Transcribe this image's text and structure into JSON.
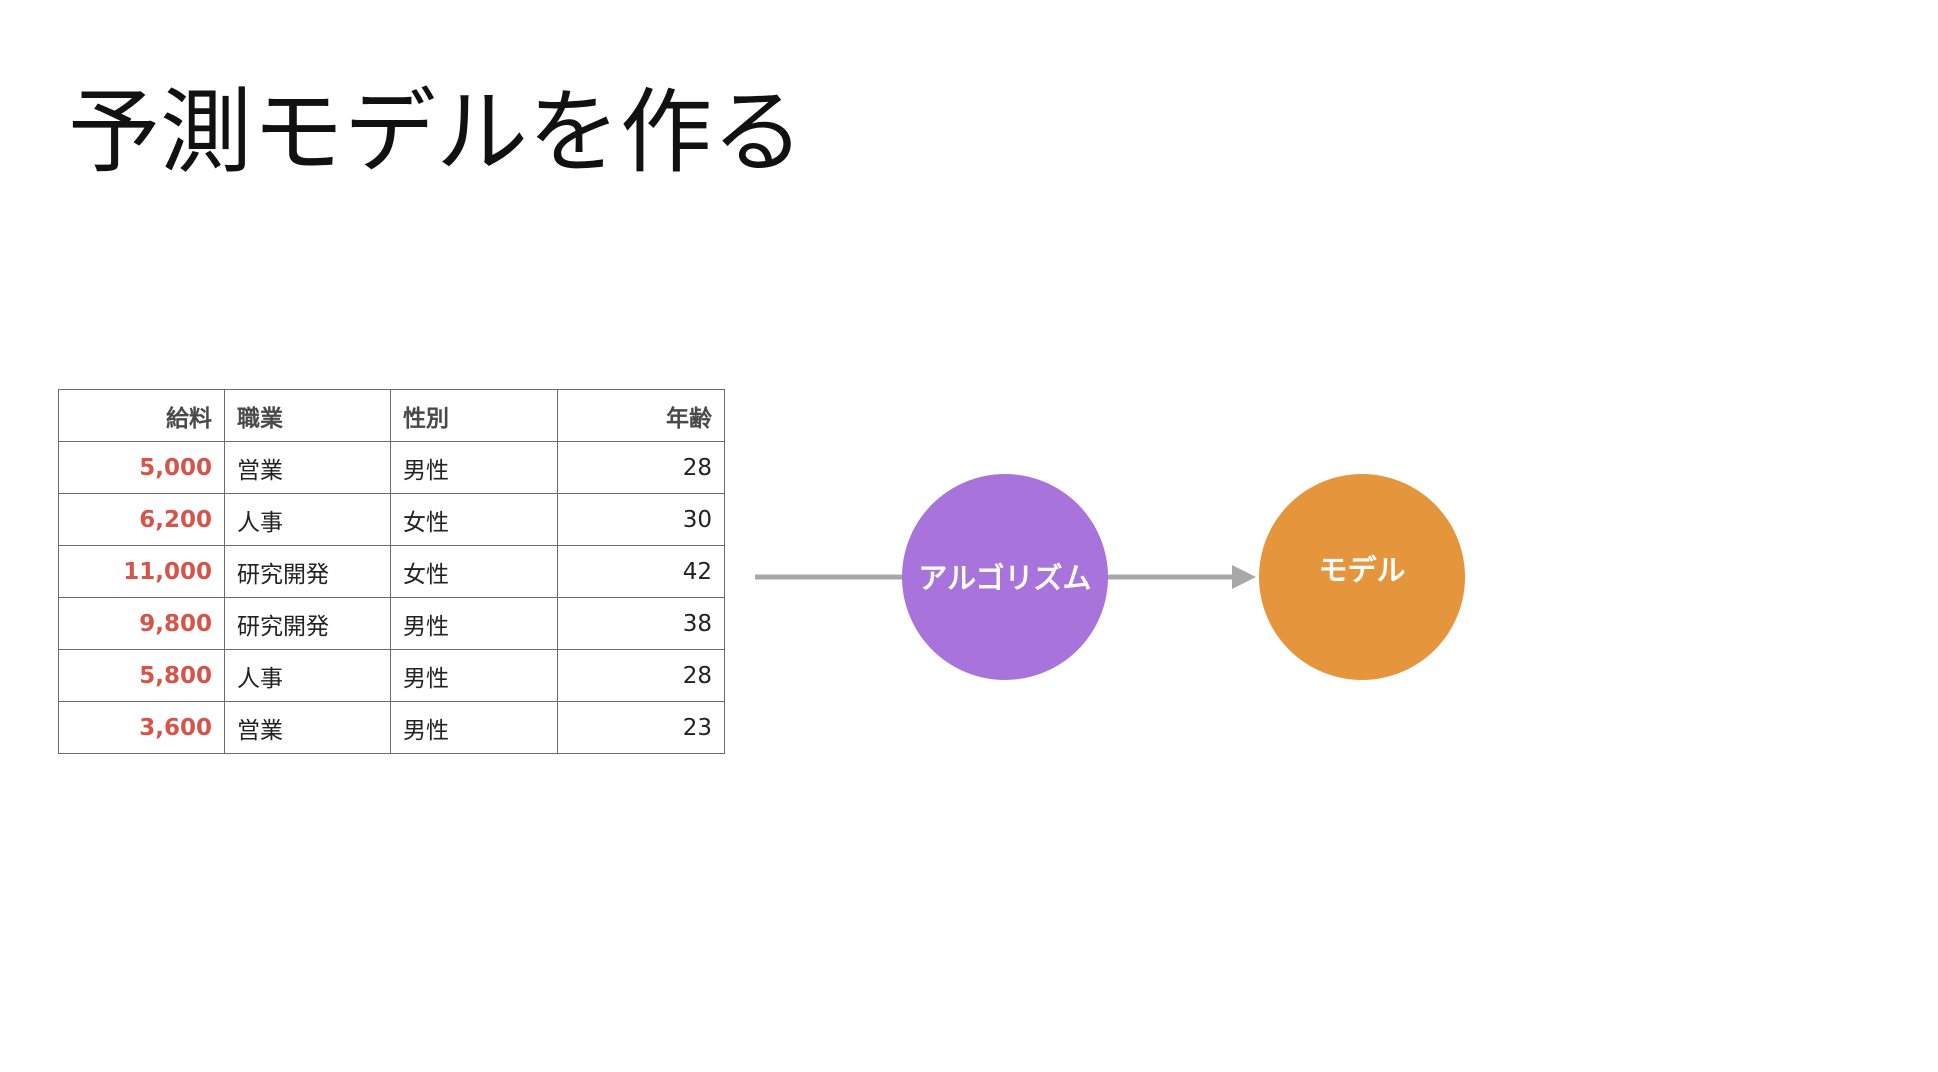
{
  "title": "予測モデルを作る",
  "table": {
    "headers": [
      "給料",
      "職業",
      "性別",
      "年齢"
    ],
    "rows": [
      [
        "5,000",
        "営業",
        "男性",
        "28"
      ],
      [
        "6,200",
        "人事",
        "女性",
        "30"
      ],
      [
        "11,000",
        "研究開発",
        "女性",
        "42"
      ],
      [
        "9,800",
        "研究開発",
        "男性",
        "38"
      ],
      [
        "5,800",
        "人事",
        "男性",
        "28"
      ],
      [
        "3,600",
        "営業",
        "男性",
        "23"
      ]
    ]
  },
  "flow": {
    "algorithm": {
      "label": "アルゴリズム",
      "color": "#a873db"
    },
    "model": {
      "label": "モデル",
      "color": "#e5963c"
    },
    "arrow_color": "#a8a8a8"
  },
  "colors": {
    "target_value": "#d6554a",
    "header_text": "#4a4a4a"
  }
}
